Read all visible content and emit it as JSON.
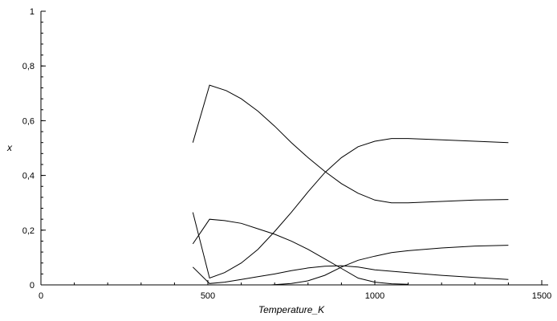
{
  "chart_data": {
    "type": "line",
    "xlabel": "Temperature_K",
    "ylabel": "x",
    "xlim": [
      0,
      1500
    ],
    "ylim": [
      0,
      1
    ],
    "grid": false,
    "line_color": "#000000",
    "x_ticks": {
      "major": [
        0,
        500,
        1000,
        1500
      ],
      "major_labels": [
        "0",
        "500",
        "1000",
        "1500"
      ],
      "minor_step": 100
    },
    "y_ticks": {
      "major": [
        0,
        0.2,
        0.4,
        0.6,
        0.8,
        1
      ],
      "major_labels": [
        "0",
        "0,2",
        "0,4",
        "0,6",
        "0,8",
        "1"
      ],
      "minor_step": 0.04
    },
    "series": [
      {
        "x": [
          455,
          505,
          555,
          600,
          650,
          700,
          750,
          800,
          850,
          900,
          950,
          1000,
          1050,
          1100,
          1200,
          1300,
          1400
        ],
        "values": [
          0.52,
          0.73,
          0.71,
          0.68,
          0.635,
          0.58,
          0.52,
          0.465,
          0.415,
          0.37,
          0.335,
          0.31,
          0.3,
          0.3,
          0.305,
          0.31,
          0.312
        ]
      },
      {
        "x": [
          455,
          505,
          550,
          600,
          650,
          700,
          750,
          800,
          850,
          900,
          950,
          1000,
          1050,
          1100,
          1200,
          1300,
          1400
        ],
        "values": [
          0.265,
          0.025,
          0.045,
          0.08,
          0.13,
          0.195,
          0.265,
          0.34,
          0.41,
          0.465,
          0.505,
          0.525,
          0.535,
          0.535,
          0.53,
          0.525,
          0.52
        ]
      },
      {
        "x": [
          455,
          505,
          550,
          600,
          650,
          700,
          750,
          800,
          850,
          900,
          950,
          1000,
          1050,
          1100
        ],
        "values": [
          0.15,
          0.24,
          0.235,
          0.225,
          0.205,
          0.185,
          0.16,
          0.13,
          0.095,
          0.06,
          0.025,
          0.01,
          0.004,
          0.002
        ]
      },
      {
        "x": [
          455,
          505,
          550,
          600,
          650,
          700,
          750,
          800,
          850,
          900,
          950,
          1000,
          1100,
          1200,
          1300,
          1400
        ],
        "values": [
          0.065,
          0.005,
          0.01,
          0.02,
          0.03,
          0.04,
          0.052,
          0.062,
          0.068,
          0.07,
          0.065,
          0.055,
          0.045,
          0.035,
          0.027,
          0.02
        ]
      },
      {
        "x": [
          690,
          750,
          800,
          850,
          900,
          950,
          1000,
          1050,
          1100,
          1200,
          1300,
          1400
        ],
        "values": [
          0.0,
          0.005,
          0.015,
          0.035,
          0.065,
          0.09,
          0.105,
          0.118,
          0.125,
          0.135,
          0.142,
          0.145
        ]
      }
    ]
  }
}
